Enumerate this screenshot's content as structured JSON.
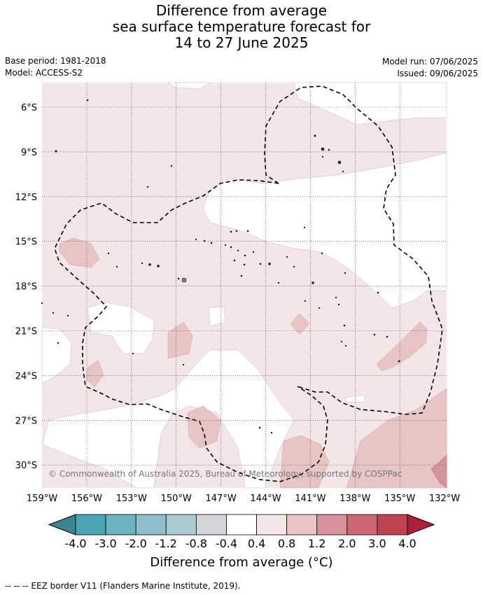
{
  "title": {
    "line1": "Difference from average",
    "line2": "sea surface temperature forecast for",
    "line3": "14 to 27 June 2025"
  },
  "meta": {
    "base_period": "Base period: 1981-2018",
    "model": "Model: ACCESS-S2",
    "model_run": "Model run: 07/06/2025",
    "issued": "Issued: 09/06/2025"
  },
  "map": {
    "copyright": "© Commonwealth of Australia 2025, Bureau of Meteorology, supported by COSPPac",
    "lat_labels": [
      "6°S",
      "9°S",
      "12°S",
      "15°S",
      "18°S",
      "21°S",
      "24°S",
      "27°S",
      "30°S"
    ],
    "lon_labels": [
      "159°W",
      "156°W",
      "153°W",
      "150°W",
      "147°W",
      "144°W",
      "141°W",
      "138°W",
      "135°W",
      "132°W"
    ],
    "colors": {
      "near_average": "#ffffff",
      "warm_0_4_0_8": "#f4e6e6",
      "warm_0_8_1_2": "#e8c4c4",
      "warm_1_2_2_0": "#d6939b",
      "warm_2_0_3_0": "#c9636f"
    }
  },
  "colorbar": {
    "tick_labels": [
      "-4.0",
      "-3.0",
      "-2.0",
      "-1.2",
      "-0.8",
      "-0.4",
      "0.4",
      "0.8",
      "1.2",
      "2.0",
      "3.0",
      "4.0"
    ],
    "colors": [
      "#4ba4b4",
      "#6db3c1",
      "#8ebfca",
      "#aacbcf",
      "#d1d6d8",
      "#ffffff",
      "#f4e6e6",
      "#e8c4c4",
      "#d6939b",
      "#cc6672",
      "#c0444f"
    ],
    "under_color": "#3a8593",
    "over_color": "#ae1f3a",
    "label": "Difference from average (°C)"
  },
  "footer": {
    "legend": "--  --  -- EEZ border V11 (Flanders Marine Institute, 2019)."
  }
}
